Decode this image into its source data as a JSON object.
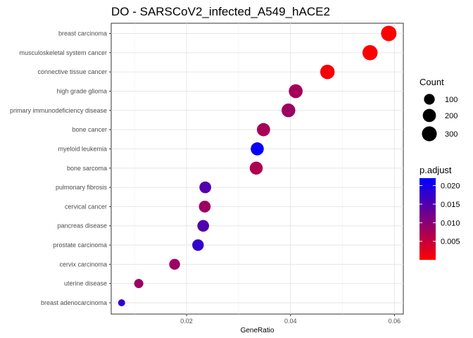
{
  "chart_data": {
    "type": "scatter",
    "title": "DO - SARSCoV2_infected_A549_hACE2",
    "xlabel": "GeneRatio",
    "ylabel": "",
    "xlim": [
      0.0055,
      0.0617
    ],
    "x_ticks": [
      0.02,
      0.04,
      0.06
    ],
    "x_tick_labels": [
      "0.02",
      "0.04",
      "0.06"
    ],
    "grid": true,
    "categories": [
      "breast carcinoma",
      "musculoskeletal system cancer",
      "connective tissue cancer",
      "high grade glioma",
      "primary immunodeficiency disease",
      "bone cancer",
      "myeloid leukemia",
      "bone sarcoma",
      "pulmonary fibrosis",
      "cervical cancer",
      "pancreas disease",
      "prostate carcinoma",
      "cervix carcinoma",
      "uterine disease",
      "breast adenocarcinoma"
    ],
    "points": [
      {
        "term": "breast carcinoma",
        "GeneRatio": 0.0589,
        "Count": 340,
        "p_adjust": 0.0001
      },
      {
        "term": "musculoskeletal system cancer",
        "GeneRatio": 0.0553,
        "Count": 320,
        "p_adjust": 0.0002
      },
      {
        "term": "connective tissue cancer",
        "GeneRatio": 0.0471,
        "Count": 272,
        "p_adjust": 0.0008
      },
      {
        "term": "high grade glioma",
        "GeneRatio": 0.041,
        "Count": 237,
        "p_adjust": 0.0078
      },
      {
        "term": "primary immunodeficiency disease",
        "GeneRatio": 0.0396,
        "Count": 229,
        "p_adjust": 0.0085
      },
      {
        "term": "bone cancer",
        "GeneRatio": 0.0348,
        "Count": 201,
        "p_adjust": 0.0075
      },
      {
        "term": "myeloid leukemia",
        "GeneRatio": 0.0336,
        "Count": 194,
        "p_adjust": 0.0215
      },
      {
        "term": "bone sarcoma",
        "GeneRatio": 0.0334,
        "Count": 193,
        "p_adjust": 0.007
      },
      {
        "term": "pulmonary fibrosis",
        "GeneRatio": 0.0236,
        "Count": 136,
        "p_adjust": 0.015
      },
      {
        "term": "cervical cancer",
        "GeneRatio": 0.0235,
        "Count": 136,
        "p_adjust": 0.0085
      },
      {
        "term": "pancreas disease",
        "GeneRatio": 0.0232,
        "Count": 134,
        "p_adjust": 0.015
      },
      {
        "term": "prostate carcinoma",
        "GeneRatio": 0.0222,
        "Count": 128,
        "p_adjust": 0.0175
      },
      {
        "term": "cervix carcinoma",
        "GeneRatio": 0.0177,
        "Count": 102,
        "p_adjust": 0.0085
      },
      {
        "term": "uterine disease",
        "GeneRatio": 0.0108,
        "Count": 62,
        "p_adjust": 0.0085
      },
      {
        "term": "breast adenocarcinoma",
        "GeneRatio": 0.0075,
        "Count": 43,
        "p_adjust": 0.0175
      }
    ],
    "size_legend": {
      "title": "Count",
      "values": [
        100,
        200,
        300
      ],
      "labels": [
        "100",
        "200",
        "300"
      ]
    },
    "color_legend": {
      "title": "p.adjust",
      "range": [
        0.0,
        0.022
      ],
      "ticks": [
        0.005,
        0.01,
        0.015,
        0.02
      ],
      "tick_labels": [
        "0.005",
        "0.010",
        "0.015",
        "0.020"
      ],
      "low_color": "#ff0000",
      "high_color": "#0000ff"
    },
    "size_range_count": [
      43,
      340
    ],
    "legend_position": "right"
  }
}
